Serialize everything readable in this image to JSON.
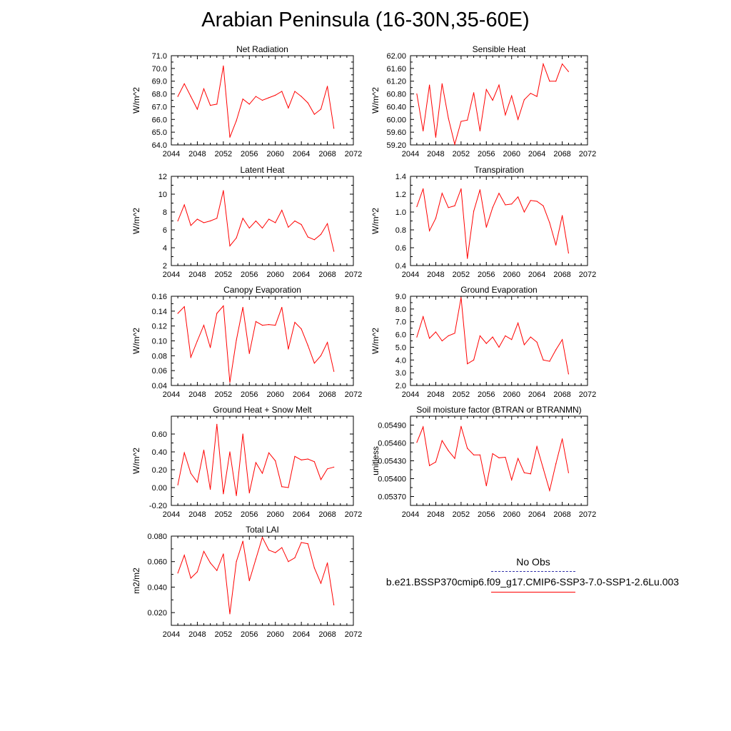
{
  "title": "Arabian Peninsula (16-30N,35-60E)",
  "legend": {
    "obs_label": "No Obs",
    "obs_color": "#3333aa",
    "case_label": "b.e21.BSSP370cmip6.f09_g17.CMIP6-SSP3-7.0-SSP1-2.6Lu.003",
    "case_color": "#ff0000"
  },
  "chart_data": [
    {
      "type": "line",
      "title": "Net Radiation",
      "ylabel": "W/m^2",
      "xlim": [
        2044,
        2072
      ],
      "xticks": [
        "2044",
        "2048",
        "2052",
        "2056",
        "2060",
        "2064",
        "2068",
        "2072"
      ],
      "ylim": [
        64.0,
        71.0
      ],
      "yticks": [
        "64.0",
        "65.0",
        "66.0",
        "67.0",
        "68.0",
        "69.0",
        "70.0",
        "71.0"
      ],
      "x": [
        2045,
        2046,
        2047,
        2048,
        2049,
        2050,
        2051,
        2052,
        2053,
        2054,
        2055,
        2056,
        2057,
        2058,
        2059,
        2060,
        2061,
        2062,
        2063,
        2064,
        2065,
        2066,
        2067,
        2068,
        2069
      ],
      "series": [
        {
          "color": "#ff0000",
          "values": [
            67.8,
            68.8,
            67.8,
            66.8,
            68.4,
            67.1,
            67.2,
            70.2,
            64.6,
            65.9,
            67.6,
            67.2,
            67.8,
            67.5,
            67.7,
            67.9,
            68.2,
            66.9,
            68.2,
            67.8,
            67.3,
            66.4,
            66.8,
            68.6,
            65.3
          ]
        }
      ]
    },
    {
      "type": "line",
      "title": "Sensible Heat",
      "ylabel": "W/m^2",
      "xlim": [
        2044,
        2072
      ],
      "xticks": [
        "2044",
        "2048",
        "2052",
        "2056",
        "2060",
        "2064",
        "2068",
        "2072"
      ],
      "ylim": [
        59.2,
        62.0
      ],
      "yticks": [
        "59.20",
        "59.60",
        "60.00",
        "60.40",
        "60.80",
        "61.20",
        "61.60",
        "62.00"
      ],
      "x": [
        2045,
        2046,
        2047,
        2048,
        2049,
        2050,
        2051,
        2052,
        2053,
        2054,
        2055,
        2056,
        2057,
        2058,
        2059,
        2060,
        2061,
        2062,
        2063,
        2064,
        2065,
        2066,
        2067,
        2068,
        2069
      ],
      "series": [
        {
          "color": "#ff0000",
          "values": [
            60.8,
            59.64,
            61.08,
            59.44,
            61.12,
            60.04,
            59.22,
            59.94,
            59.98,
            60.84,
            59.64,
            60.94,
            60.6,
            61.08,
            60.14,
            60.74,
            60.0,
            60.62,
            60.82,
            60.72,
            61.74,
            61.2,
            61.2,
            61.74,
            61.5
          ]
        }
      ]
    },
    {
      "type": "line",
      "title": "Latent Heat",
      "ylabel": "W/m^2",
      "xlim": [
        2044,
        2072
      ],
      "xticks": [
        "2044",
        "2048",
        "2052",
        "2056",
        "2060",
        "2064",
        "2068",
        "2072"
      ],
      "ylim": [
        2,
        12
      ],
      "yticks": [
        "2",
        "4",
        "6",
        "8",
        "10",
        "12"
      ],
      "x": [
        2045,
        2046,
        2047,
        2048,
        2049,
        2050,
        2051,
        2052,
        2053,
        2054,
        2055,
        2056,
        2057,
        2058,
        2059,
        2060,
        2061,
        2062,
        2063,
        2064,
        2065,
        2066,
        2067,
        2068,
        2069
      ],
      "series": [
        {
          "color": "#ff0000",
          "values": [
            7.0,
            8.8,
            6.5,
            7.2,
            6.8,
            7.0,
            7.3,
            10.4,
            4.2,
            5.1,
            7.3,
            6.2,
            7.0,
            6.2,
            7.2,
            6.8,
            8.2,
            6.3,
            7.0,
            6.6,
            5.2,
            4.9,
            5.5,
            6.7,
            3.6
          ]
        }
      ]
    },
    {
      "type": "line",
      "title": "Transpiration",
      "ylabel": "W/m^2",
      "xlim": [
        2044,
        2072
      ],
      "xticks": [
        "2044",
        "2048",
        "2052",
        "2056",
        "2060",
        "2064",
        "2068",
        "2072"
      ],
      "ylim": [
        0.4,
        1.4
      ],
      "yticks": [
        "0.4",
        "0.6",
        "0.8",
        "1.0",
        "1.2",
        "1.4"
      ],
      "x": [
        2045,
        2046,
        2047,
        2048,
        2049,
        2050,
        2051,
        2052,
        2053,
        2054,
        2055,
        2056,
        2057,
        2058,
        2059,
        2060,
        2061,
        2062,
        2063,
        2064,
        2065,
        2066,
        2067,
        2068,
        2069
      ],
      "series": [
        {
          "color": "#ff0000",
          "values": [
            1.06,
            1.26,
            0.79,
            0.93,
            1.21,
            1.05,
            1.07,
            1.26,
            0.48,
            1.01,
            1.25,
            0.83,
            1.05,
            1.21,
            1.08,
            1.09,
            1.17,
            1.0,
            1.13,
            1.12,
            1.07,
            0.88,
            0.63,
            0.96,
            0.54
          ]
        }
      ]
    },
    {
      "type": "line",
      "title": "Canopy Evaporation",
      "ylabel": "W/m^2",
      "xlim": [
        2044,
        2072
      ],
      "xticks": [
        "2044",
        "2048",
        "2052",
        "2056",
        "2060",
        "2064",
        "2068",
        "2072"
      ],
      "ylim": [
        0.04,
        0.16
      ],
      "yticks": [
        "0.04",
        "0.06",
        "0.08",
        "0.10",
        "0.12",
        "0.14",
        "0.16"
      ],
      "x": [
        2045,
        2046,
        2047,
        2048,
        2049,
        2050,
        2051,
        2052,
        2053,
        2054,
        2055,
        2056,
        2057,
        2058,
        2059,
        2060,
        2061,
        2062,
        2063,
        2064,
        2065,
        2066,
        2067,
        2068,
        2069
      ],
      "series": [
        {
          "color": "#ff0000",
          "values": [
            0.137,
            0.146,
            0.078,
            0.1,
            0.121,
            0.091,
            0.137,
            0.147,
            0.044,
            0.101,
            0.145,
            0.083,
            0.126,
            0.121,
            0.122,
            0.121,
            0.145,
            0.089,
            0.125,
            0.116,
            0.094,
            0.07,
            0.08,
            0.098,
            0.059
          ]
        }
      ]
    },
    {
      "type": "line",
      "title": "Ground Evaporation",
      "ylabel": "W/m^2",
      "xlim": [
        2044,
        2072
      ],
      "xticks": [
        "2044",
        "2048",
        "2052",
        "2056",
        "2060",
        "2064",
        "2068",
        "2072"
      ],
      "ylim": [
        2.0,
        9.0
      ],
      "yticks": [
        "2.0",
        "3.0",
        "4.0",
        "5.0",
        "6.0",
        "7.0",
        "8.0",
        "9.0"
      ],
      "x": [
        2045,
        2046,
        2047,
        2048,
        2049,
        2050,
        2051,
        2052,
        2053,
        2054,
        2055,
        2056,
        2057,
        2058,
        2059,
        2060,
        2061,
        2062,
        2063,
        2064,
        2065,
        2066,
        2067,
        2068,
        2069
      ],
      "series": [
        {
          "color": "#ff0000",
          "values": [
            5.8,
            7.4,
            5.7,
            6.2,
            5.5,
            5.9,
            6.1,
            8.9,
            3.7,
            4.0,
            5.9,
            5.3,
            5.8,
            5.0,
            5.9,
            5.6,
            6.9,
            5.2,
            5.8,
            5.4,
            4.0,
            3.9,
            4.8,
            5.6,
            2.9
          ]
        }
      ]
    },
    {
      "type": "line",
      "title": "Ground Heat + Snow Melt",
      "ylabel": "W/m^2",
      "xlim": [
        2044,
        2072
      ],
      "xticks": [
        "2044",
        "2048",
        "2052",
        "2056",
        "2060",
        "2064",
        "2068",
        "2072"
      ],
      "ylim": [
        -0.2,
        0.8
      ],
      "yticks": [
        "-0.20",
        "0.00",
        "0.20",
        "0.40",
        "0.60"
      ],
      "ytick_values": [
        -0.2,
        0.0,
        0.2,
        0.4,
        0.6
      ],
      "x": [
        2045,
        2046,
        2047,
        2048,
        2049,
        2050,
        2051,
        2052,
        2053,
        2054,
        2055,
        2056,
        2057,
        2058,
        2059,
        2060,
        2061,
        2062,
        2063,
        2064,
        2065,
        2066,
        2067,
        2068,
        2069
      ],
      "series": [
        {
          "color": "#ff0000",
          "values": [
            0.03,
            0.39,
            0.16,
            0.06,
            0.42,
            -0.02,
            0.71,
            -0.07,
            0.4,
            -0.09,
            0.6,
            -0.06,
            0.28,
            0.16,
            0.39,
            0.3,
            0.01,
            0.0,
            0.35,
            0.31,
            0.32,
            0.29,
            0.09,
            0.21,
            0.23
          ]
        }
      ]
    },
    {
      "type": "line",
      "title": "Soil moisture factor (BTRAN or BTRANMN)",
      "ylabel": "unitless",
      "xlim": [
        2044,
        2072
      ],
      "xticks": [
        "2044",
        "2048",
        "2052",
        "2056",
        "2060",
        "2064",
        "2068",
        "2072"
      ],
      "ylim": [
        0.05355,
        0.05505
      ],
      "yticks": [
        "0.05370",
        "0.05400",
        "0.05430",
        "0.05460",
        "0.05490"
      ],
      "ytick_values": [
        0.0537,
        0.054,
        0.0543,
        0.0546,
        0.0549
      ],
      "x": [
        2045,
        2046,
        2047,
        2048,
        2049,
        2050,
        2051,
        2052,
        2053,
        2054,
        2055,
        2056,
        2057,
        2058,
        2059,
        2060,
        2061,
        2062,
        2063,
        2064,
        2065,
        2066,
        2067,
        2068,
        2069
      ],
      "series": [
        {
          "color": "#ff0000",
          "values": [
            0.05461,
            0.05487,
            0.05422,
            0.05428,
            0.05464,
            0.05447,
            0.05434,
            0.05488,
            0.05451,
            0.0544,
            0.0544,
            0.05388,
            0.05442,
            0.05435,
            0.05436,
            0.05398,
            0.05434,
            0.0541,
            0.05408,
            0.05454,
            0.05417,
            0.0538,
            0.05425,
            0.05467,
            0.0541
          ]
        }
      ]
    },
    {
      "type": "line",
      "title": "Total LAI",
      "ylabel": "m2/m2",
      "xlim": [
        2044,
        2072
      ],
      "xticks": [
        "2044",
        "2048",
        "2052",
        "2056",
        "2060",
        "2064",
        "2068",
        "2072"
      ],
      "ylim": [
        0.01,
        0.08
      ],
      "yticks": [
        "0.020",
        "0.040",
        "0.060",
        "0.080"
      ],
      "ytick_values": [
        0.02,
        0.04,
        0.06,
        0.08
      ],
      "x": [
        2045,
        2046,
        2047,
        2048,
        2049,
        2050,
        2051,
        2052,
        2053,
        2054,
        2055,
        2056,
        2057,
        2058,
        2059,
        2060,
        2061,
        2062,
        2063,
        2064,
        2065,
        2066,
        2067,
        2068,
        2069
      ],
      "series": [
        {
          "color": "#ff0000",
          "values": [
            0.051,
            0.065,
            0.047,
            0.052,
            0.068,
            0.059,
            0.053,
            0.066,
            0.019,
            0.06,
            0.076,
            0.045,
            0.062,
            0.079,
            0.069,
            0.067,
            0.071,
            0.06,
            0.063,
            0.075,
            0.074,
            0.055,
            0.043,
            0.059,
            0.026
          ]
        }
      ]
    }
  ]
}
